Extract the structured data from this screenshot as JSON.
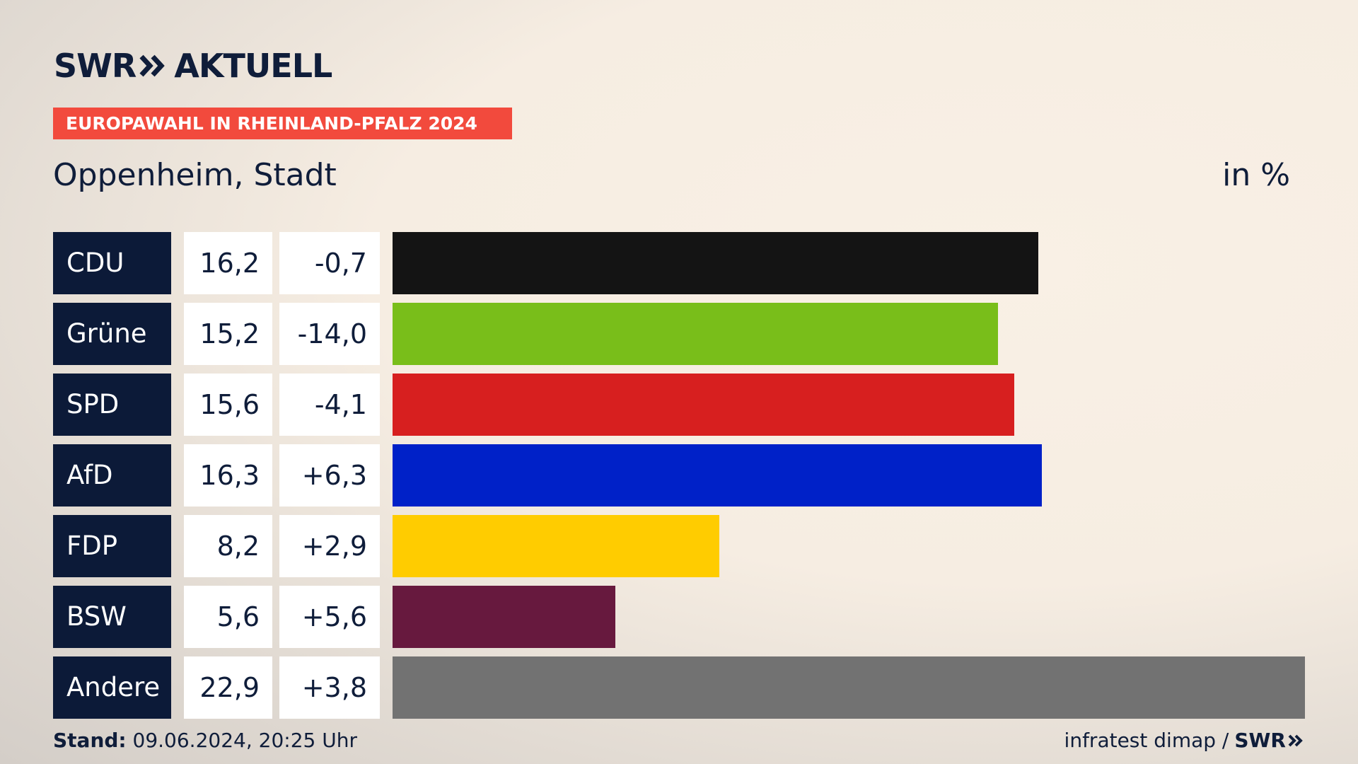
{
  "header": {
    "logo_text_left": "SWR",
    "logo_text_right": "AKTUELL",
    "tag": "EUROPAWAHL IN RHEINLAND-PFALZ 2024",
    "subtitle": "Oppenheim, Stadt",
    "unit": "in %"
  },
  "colors": {
    "tag_background": "#f24a3d",
    "label_background": "#0c1a38"
  },
  "chart_data": {
    "type": "bar",
    "orientation": "horizontal",
    "categories": [
      "CDU",
      "Grüne",
      "SPD",
      "AfD",
      "FDP",
      "BSW",
      "Andere"
    ],
    "values": [
      16.2,
      15.2,
      15.6,
      16.3,
      8.2,
      5.6,
      22.9
    ],
    "value_labels": [
      "16,2",
      "15,2",
      "15,6",
      "16,3",
      "8,2",
      "5,6",
      "22,9"
    ],
    "diff_labels": [
      "-0,7",
      "-14,0",
      "-4,1",
      "+6,3",
      "+2,9",
      "+5,6",
      "+3,8"
    ],
    "colors": [
      "#141414",
      "#79be1a",
      "#d71f1f",
      "#0021c8",
      "#ffcc00",
      "#67193e",
      "#727272"
    ],
    "xlim": [
      0,
      22.9
    ]
  },
  "footer": {
    "stand_label": "Stand:",
    "stand_value": " 09.06.2024, 20:25 Uhr",
    "source": "infratest dimap /",
    "source_logo": "SWR"
  }
}
